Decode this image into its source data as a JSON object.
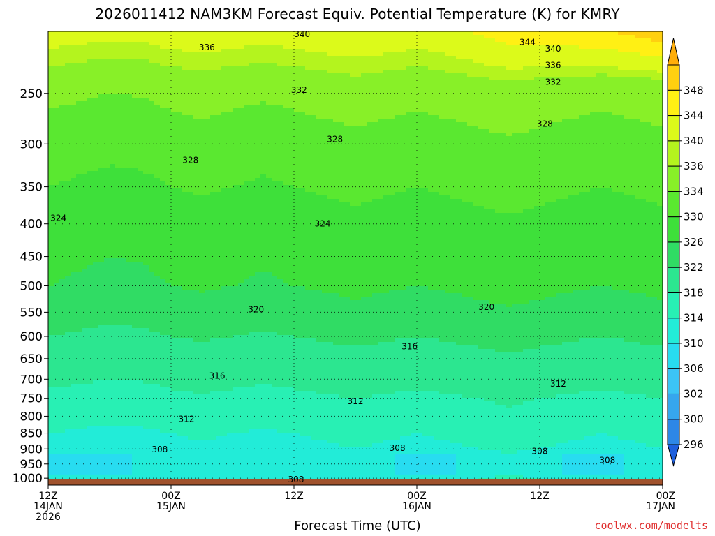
{
  "chart_data": {
    "type": "heatmap",
    "title": "2026011412 NAM3KM Forecast Equiv. Potential Temperature (K) for KMRY",
    "xlabel": "Forecast Time (UTC)",
    "ylabel": "",
    "x_ticks": [
      {
        "hours": 0,
        "lines": [
          "12Z",
          "14JAN",
          "2026"
        ]
      },
      {
        "hours": 12,
        "lines": [
          "00Z",
          "15JAN"
        ]
      },
      {
        "hours": 24,
        "lines": [
          "12Z"
        ]
      },
      {
        "hours": 36,
        "lines": [
          "00Z",
          "16JAN"
        ]
      },
      {
        "hours": 48,
        "lines": [
          "12Z"
        ]
      },
      {
        "hours": 60,
        "lines": [
          "00Z",
          "17JAN"
        ]
      }
    ],
    "xlim_hours": [
      0,
      60
    ],
    "y_ticks": [
      250,
      300,
      350,
      400,
      450,
      500,
      550,
      600,
      650,
      700,
      750,
      800,
      850,
      900,
      950,
      1000
    ],
    "ylim": [
      1025,
      200
    ],
    "y_scale": "log",
    "grid": true,
    "colorbar": {
      "levels": [
        296,
        300,
        302,
        306,
        310,
        314,
        318,
        322,
        326,
        330,
        334,
        336,
        340,
        344,
        348
      ],
      "colors": [
        "#1e5fdc",
        "#2d87e6",
        "#36a6ee",
        "#3cc4f5",
        "#28dcf0",
        "#22ecd8",
        "#28f0b4",
        "#2ce690",
        "#30dc64",
        "#3ee03a",
        "#5ae830",
        "#88f028",
        "#b4f41e",
        "#dcfa1a",
        "#fff014",
        "#ffd010",
        "#ffae0a"
      ]
    },
    "field": {
      "times_hours": [
        0,
        3,
        6,
        9,
        12,
        15,
        18,
        21,
        24,
        27,
        30,
        33,
        36,
        39,
        42,
        45,
        48,
        51,
        54,
        57,
        60
      ],
      "pressure_levels": [
        1000,
        950,
        900,
        850,
        800,
        750,
        700,
        650,
        600,
        550,
        500,
        450,
        400,
        350,
        300,
        250,
        200
      ],
      "base_profile": [
        309,
        307,
        309,
        310,
        312,
        313,
        315,
        316,
        318,
        320,
        322,
        323,
        324,
        326,
        328,
        331,
        338
      ],
      "time_anomaly": [
        0,
        -0.5,
        -1,
        -0.8,
        0,
        0.5,
        0,
        -0.5,
        0,
        0.5,
        1,
        0.5,
        0,
        0.5,
        1,
        1.5,
        1,
        0.5,
        0,
        0.5,
        1
      ]
    },
    "contour_labels": [
      {
        "text": "340",
        "t": 24.8,
        "p": 202
      },
      {
        "text": "336",
        "t": 15.5,
        "p": 212
      },
      {
        "text": "344",
        "t": 46.8,
        "p": 208
      },
      {
        "text": "340",
        "t": 49.3,
        "p": 213
      },
      {
        "text": "336",
        "t": 49.3,
        "p": 226
      },
      {
        "text": "332",
        "t": 49.3,
        "p": 240
      },
      {
        "text": "332",
        "t": 24.5,
        "p": 247
      },
      {
        "text": "328",
        "t": 48.5,
        "p": 279
      },
      {
        "text": "328",
        "t": 28.0,
        "p": 295
      },
      {
        "text": "328",
        "t": 13.9,
        "p": 318
      },
      {
        "text": "324",
        "t": 1.0,
        "p": 392
      },
      {
        "text": "324",
        "t": 26.8,
        "p": 400
      },
      {
        "text": "320",
        "t": 20.3,
        "p": 545
      },
      {
        "text": "320",
        "t": 42.8,
        "p": 540
      },
      {
        "text": "316",
        "t": 35.3,
        "p": 622
      },
      {
        "text": "316",
        "t": 16.5,
        "p": 692
      },
      {
        "text": "312",
        "t": 49.8,
        "p": 712
      },
      {
        "text": "312",
        "t": 30.0,
        "p": 758
      },
      {
        "text": "312",
        "t": 13.5,
        "p": 808
      },
      {
        "text": "308",
        "t": 10.9,
        "p": 902
      },
      {
        "text": "308",
        "t": 34.1,
        "p": 897
      },
      {
        "text": "308",
        "t": 48.0,
        "p": 907
      },
      {
        "text": "308",
        "t": 54.6,
        "p": 938
      },
      {
        "text": "308",
        "t": 24.2,
        "p": 1005
      }
    ]
  },
  "footer": {
    "credit": "coolwx.com/modelts"
  }
}
